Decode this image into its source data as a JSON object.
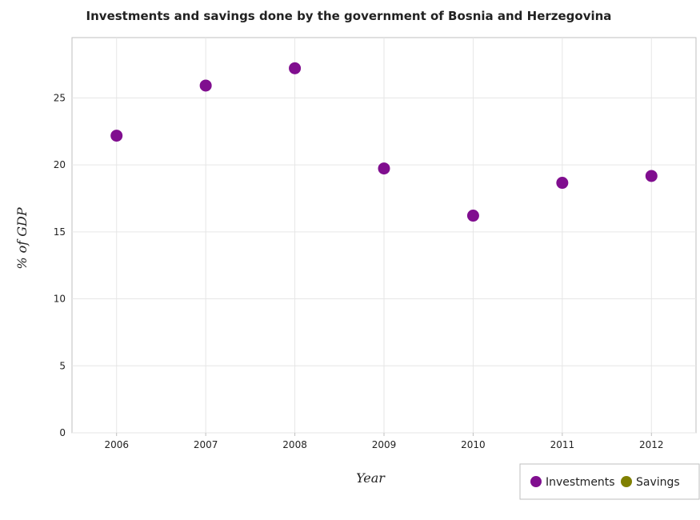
{
  "chart_data": {
    "type": "scatter",
    "title": "Investments and savings done by the government of Bosnia and Herzegovina",
    "xlabel": "Year",
    "ylabel": "% of GDP",
    "categories": [
      "2006",
      "2007",
      "2008",
      "2009",
      "2010",
      "2011",
      "2012"
    ],
    "ylim": [
      0,
      29.5
    ],
    "yticks": [
      0,
      5,
      10,
      15,
      20,
      25
    ],
    "ytick_labels": [
      "0",
      "5",
      "10",
      "15",
      "20",
      "25"
    ],
    "grid": true,
    "legend_position": "bottom-right",
    "series": [
      {
        "name": "Investments",
        "color": "#800e8f",
        "values": [
          22.18,
          25.92,
          27.21,
          19.73,
          16.21,
          18.66,
          19.17
        ]
      },
      {
        "name": "Savings",
        "color": "#808000",
        "values": [
          null,
          null,
          null,
          null,
          null,
          null,
          null
        ]
      }
    ]
  }
}
